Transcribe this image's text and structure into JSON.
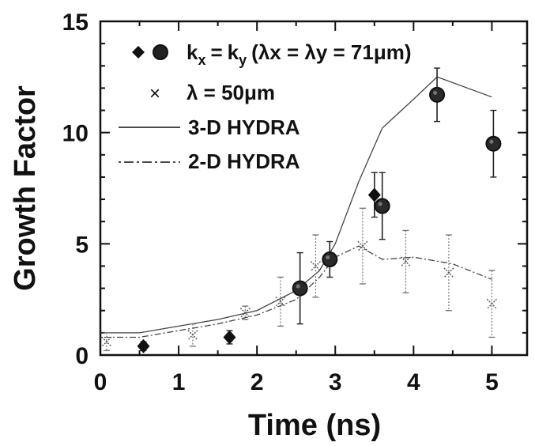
{
  "chart_data": {
    "type": "scatter",
    "xlabel": "Time (ns)",
    "ylabel": "Growth Factor",
    "xlim": [
      0,
      5.45
    ],
    "ylim": [
      0,
      15
    ],
    "x_ticks": [
      "0",
      "1",
      "2",
      "3",
      "4",
      "5"
    ],
    "y_ticks": [
      "0",
      "5",
      "10",
      "15"
    ],
    "legend_position": "top-left",
    "legend": {
      "kxky": {
        "k": "k",
        "x": "x",
        "eq": "=",
        "y": "y",
        "rest": "(λx = λy = 71μm)"
      },
      "lambda50": "λ = 50μm",
      "hydra3d": "3-D HYDRA",
      "hydra2d": "2-D HYDRA"
    },
    "series": [
      {
        "name": "kx = ky (λx = λy = 71μm) diamonds",
        "marker": "diamond",
        "points": [
          {
            "x": 0.55,
            "y": 0.4,
            "err": 0.2
          },
          {
            "x": 1.65,
            "y": 0.8,
            "err": 0.3
          },
          {
            "x": 3.5,
            "y": 7.2,
            "err": 1.0
          }
        ]
      },
      {
        "name": "kx = ky (λx = λy = 71μm) circles",
        "marker": "circle",
        "points": [
          {
            "x": 2.55,
            "y": 3.0,
            "err": 1.6
          },
          {
            "x": 2.93,
            "y": 4.3,
            "err": 0.8
          },
          {
            "x": 3.6,
            "y": 6.7,
            "err": 1.5
          },
          {
            "x": 4.3,
            "y": 11.7,
            "err": 1.2
          },
          {
            "x": 5.02,
            "y": 9.5,
            "err": 1.5
          }
        ]
      },
      {
        "name": "λ = 50μm",
        "marker": "cross",
        "points": [
          {
            "x": 0.08,
            "y": 0.6,
            "err": 0.4
          },
          {
            "x": 1.18,
            "y": 0.9,
            "err": 0.5
          },
          {
            "x": 1.85,
            "y": 1.9,
            "err": 0.3
          },
          {
            "x": 2.3,
            "y": 2.4,
            "err": 1.1
          },
          {
            "x": 2.75,
            "y": 4.0,
            "err": 1.4
          },
          {
            "x": 3.35,
            "y": 4.9,
            "err": 1.7
          },
          {
            "x": 3.9,
            "y": 4.2,
            "err": 1.4
          },
          {
            "x": 4.45,
            "y": 3.7,
            "err": 1.7
          },
          {
            "x": 5.0,
            "y": 2.3,
            "err": 1.5
          }
        ]
      },
      {
        "name": "3-D HYDRA",
        "line": "solid",
        "x": [
          0,
          0.5,
          1.0,
          1.5,
          2.0,
          2.5,
          2.8,
          3.0,
          3.3,
          3.6,
          4.0,
          4.3,
          5.0
        ],
        "y": [
          1.0,
          1.0,
          1.3,
          1.6,
          2.0,
          2.9,
          3.8,
          5.0,
          7.8,
          10.2,
          11.5,
          12.5,
          11.6
        ]
      },
      {
        "name": "2-D HYDRA",
        "line": "dashed",
        "x": [
          0,
          0.5,
          1.0,
          1.5,
          2.0,
          2.5,
          2.8,
          3.0,
          3.3,
          3.6,
          4.0,
          4.5,
          5.0
        ],
        "y": [
          0.8,
          0.8,
          1.1,
          1.4,
          1.8,
          2.5,
          3.5,
          4.4,
          4.9,
          4.3,
          4.4,
          4.1,
          3.4
        ]
      }
    ]
  }
}
